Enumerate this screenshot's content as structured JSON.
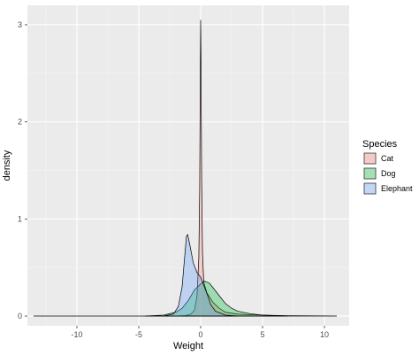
{
  "chart_data": {
    "type": "area",
    "subtype": "density",
    "title": "",
    "xlabel": "Weight",
    "ylabel": "density",
    "xlim": [
      -14,
      12
    ],
    "ylim": [
      -0.1,
      3.2
    ],
    "x_ticks": [
      -10,
      -5,
      0,
      5,
      10
    ],
    "y_ticks": [
      0,
      1,
      2,
      3
    ],
    "x_tick_labels": [
      "-10",
      "-5",
      "0",
      "5",
      "10"
    ],
    "y_tick_labels": [
      "0",
      "1",
      "2",
      "3"
    ],
    "grid": true,
    "legend": {
      "title": "Species",
      "position": "right"
    },
    "series": [
      {
        "name": "Cat",
        "fill": "#f8766d",
        "points": [
          [
            -13.5,
            0
          ],
          [
            -2,
            0
          ],
          [
            -1.2,
            0.005
          ],
          [
            -0.8,
            0.02
          ],
          [
            -0.5,
            0.06
          ],
          [
            -0.3,
            0.2
          ],
          [
            -0.15,
            0.6
          ],
          [
            -0.08,
            1.3
          ],
          [
            -0.03,
            2.5
          ],
          [
            0,
            3.05
          ],
          [
            0.03,
            2.6
          ],
          [
            0.08,
            1.4
          ],
          [
            0.15,
            0.65
          ],
          [
            0.25,
            0.35
          ],
          [
            0.5,
            0.24
          ],
          [
            1,
            0.14
          ],
          [
            1.5,
            0.08
          ],
          [
            2,
            0.04
          ],
          [
            3,
            0.02
          ],
          [
            5,
            0.01
          ],
          [
            7,
            0.004
          ],
          [
            11,
            0
          ]
        ]
      },
      {
        "name": "Dog",
        "fill": "#00ba38",
        "points": [
          [
            -4.5,
            0
          ],
          [
            -3,
            0.01
          ],
          [
            -2,
            0.04
          ],
          [
            -1.5,
            0.08
          ],
          [
            -1,
            0.16
          ],
          [
            -0.5,
            0.27
          ],
          [
            0,
            0.33
          ],
          [
            0.3,
            0.36
          ],
          [
            0.7,
            0.34
          ],
          [
            1.2,
            0.26
          ],
          [
            1.5,
            0.21
          ],
          [
            2,
            0.13
          ],
          [
            2.5,
            0.08
          ],
          [
            3,
            0.05
          ],
          [
            4,
            0.025
          ],
          [
            5,
            0.01
          ],
          [
            6,
            0.005
          ],
          [
            7,
            0
          ]
        ]
      },
      {
        "name": "Elephant",
        "fill": "#619cff",
        "points": [
          [
            -3,
            0
          ],
          [
            -2.2,
            0.02
          ],
          [
            -1.8,
            0.1
          ],
          [
            -1.5,
            0.3
          ],
          [
            -1.3,
            0.6
          ],
          [
            -1.15,
            0.82
          ],
          [
            -1.05,
            0.84
          ],
          [
            -0.9,
            0.75
          ],
          [
            -0.6,
            0.55
          ],
          [
            -0.3,
            0.45
          ],
          [
            0,
            0.4
          ],
          [
            0.3,
            0.3
          ],
          [
            0.6,
            0.2
          ],
          [
            0.8,
            0.12
          ],
          [
            1.2,
            0.05
          ],
          [
            2,
            0.01
          ],
          [
            3,
            0
          ]
        ]
      }
    ]
  }
}
